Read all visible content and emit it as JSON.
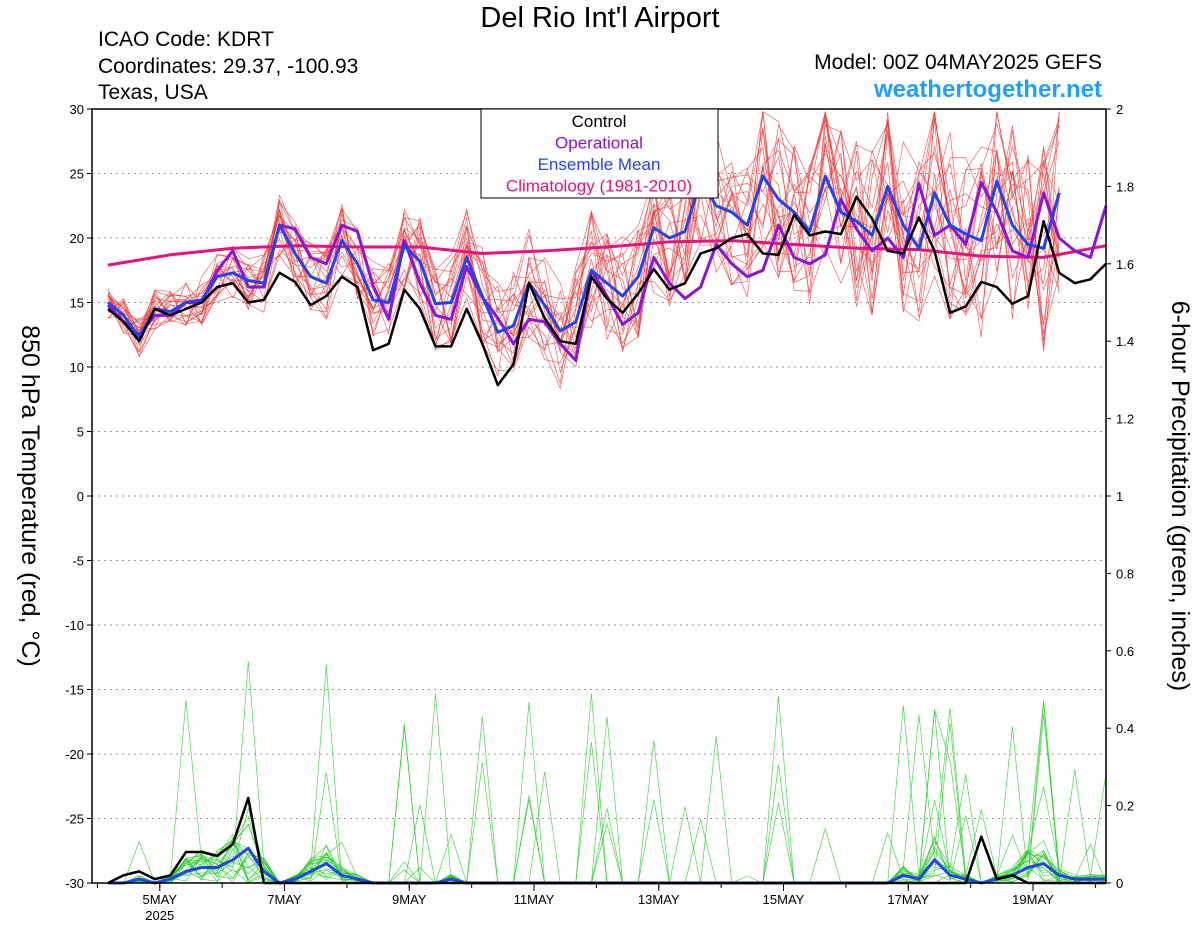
{
  "header": {
    "title": "Del Rio Int'l Airport",
    "icao": "ICAO Code: KDRT",
    "coords": "Coordinates: 29.37, -100.93",
    "region": "Texas, USA",
    "model": "Model: 00Z 04MAY2025 GEFS",
    "site": "weathertogether.net"
  },
  "colors": {
    "control": "#000000",
    "operational": "#8a14d8",
    "mean": "#2244ee",
    "climatology": "#e8127c",
    "members_temp": "#ee3030",
    "members_precip": "#22cc22",
    "site": "#1ea0ff"
  },
  "chart_data": {
    "type": "line",
    "left_axis_label": "850 hPa Temperature (red, °C)",
    "right_axis_label": "6-hour Precipitation (green, inches)",
    "ylim_left": [
      -30,
      30
    ],
    "ylim_right": [
      0,
      2
    ],
    "left_ticks": [
      "30",
      "25",
      "20",
      "15",
      "10",
      "5",
      "0",
      "-5",
      "-10",
      "-15",
      "-20",
      "-25",
      "-30"
    ],
    "right_ticks": [
      "2",
      "1.8",
      "1.6",
      "1.4",
      "1.2",
      "1",
      "0.8",
      "0.6",
      "0.4",
      "0.2",
      "0"
    ],
    "x_ticks": [
      {
        "day": 0.83,
        "label": "5MAY",
        "sub": "2025"
      },
      {
        "day": 2.83,
        "label": "7MAY",
        "sub": ""
      },
      {
        "day": 4.83,
        "label": "9MAY",
        "sub": ""
      },
      {
        "day": 6.83,
        "label": "11MAY",
        "sub": ""
      },
      {
        "day": 8.83,
        "label": "13MAY",
        "sub": ""
      },
      {
        "day": 10.83,
        "label": "15MAY",
        "sub": ""
      },
      {
        "day": 12.83,
        "label": "17MAY",
        "sub": ""
      },
      {
        "day": 14.83,
        "label": "19MAY",
        "sub": ""
      }
    ],
    "x_range_days": [
      0,
      16
    ],
    "step_hours": 6,
    "legend": [
      "Control",
      "Operational",
      "Ensemble Mean",
      "Climatology (1981-2010)"
    ],
    "legend_position": "top-center",
    "grid": true,
    "series": [
      {
        "name": "Control",
        "axis": "left",
        "values": [
          14.5,
          13.5,
          12,
          14.5,
          14,
          14.5,
          15,
          16.2,
          16.5,
          15,
          15.2,
          17.3,
          16.6,
          14.8,
          15.5,
          17,
          16.2,
          11.3,
          11.8,
          16,
          14.5,
          11.6,
          11.6,
          14.5,
          11.8,
          8.6,
          10.2,
          16.5,
          13.8,
          12,
          11.8,
          17,
          15.3,
          14.2,
          15.7,
          17.6,
          16,
          16.5,
          18.8,
          19.2,
          20,
          20.3,
          18.8,
          18.7,
          21.8,
          20.2,
          20.5,
          20.3,
          23.2,
          21.5,
          19,
          18.8,
          21.6,
          19,
          14.2,
          14.7,
          16.6,
          16.2,
          14.9,
          15.5,
          21.3,
          17.3,
          16.5,
          16.8,
          18
        ]
      },
      {
        "name": "Operational",
        "axis": "left",
        "values": [
          14.8,
          13.5,
          12.5,
          14,
          14,
          15,
          15,
          17.5,
          19,
          16.2,
          16.2,
          21,
          20.7,
          18.5,
          18,
          21,
          20.5,
          16.3,
          13.7,
          19.8,
          16.5,
          14,
          13.7,
          17.8,
          15.4,
          13.8,
          11.8,
          13.7,
          13.5,
          11.8,
          10.5,
          17.5,
          15.5,
          13.3,
          14.2,
          18.5,
          16.5,
          15.3,
          16.2,
          19.5,
          18,
          17,
          17.5,
          21,
          18.5,
          18,
          18.7,
          23,
          20.7,
          19,
          20,
          18.5,
          24.2,
          20.2,
          21,
          19.5,
          24.3,
          22,
          19,
          18.5,
          23.5,
          20,
          19,
          18.5,
          22.5
        ]
      },
      {
        "name": "Ensemble Mean",
        "axis": "left",
        "values": [
          15,
          14,
          12.3,
          14.5,
          14.3,
          15,
          15.2,
          17,
          17.3,
          16.7,
          16.5,
          21,
          18.8,
          17,
          16.5,
          19.8,
          18,
          15.2,
          15,
          19.4,
          18.2,
          14.9,
          15,
          18.5,
          15.5,
          12.7,
          13.2,
          16.5,
          14.8,
          12.8,
          13.5,
          17.5,
          16.5,
          15.5,
          17,
          20.8,
          20,
          20.5,
          24.5,
          22.5,
          22,
          21,
          24.8,
          23,
          22,
          20.5,
          24.8,
          22,
          21.3,
          20.2,
          24,
          21,
          19.2,
          23.5,
          21,
          20.3,
          19.8,
          24.4,
          21,
          19.5,
          19.2,
          23.5
        ]
      },
      {
        "name": "Climatology (1981-2010)",
        "axis": "left",
        "values_daily": [
          17.9,
          18.7,
          19.2,
          19.4,
          19.3,
          19.3,
          18.8,
          19,
          19.3,
          19.7,
          19.8,
          19.5,
          19.2,
          19.1,
          18.6,
          18.5,
          19.4
        ]
      },
      {
        "name": "Control Precipitation",
        "axis": "right",
        "values": [
          0,
          0.02,
          0.03,
          0.01,
          0.02,
          0.08,
          0.08,
          0.07,
          0.1,
          0.22,
          0,
          0,
          0,
          0,
          0,
          0,
          0,
          0,
          0,
          0,
          0,
          0,
          0,
          0,
          0,
          0,
          0,
          0,
          0,
          0,
          0,
          0,
          0,
          0,
          0,
          0,
          0,
          0,
          0,
          0,
          0,
          0,
          0,
          0,
          0,
          0,
          0,
          0,
          0,
          0,
          0,
          0,
          0,
          0,
          0,
          0,
          0.12,
          0.01,
          0.02,
          0,
          0,
          0,
          0,
          0,
          0
        ]
      },
      {
        "name": "Mean Precipitation",
        "axis": "right",
        "values": [
          0,
          0,
          0.01,
          0,
          0.01,
          0.03,
          0.04,
          0.04,
          0.06,
          0.09,
          0.03,
          0,
          0.01,
          0.03,
          0.05,
          0.02,
          0.01,
          0,
          0,
          0,
          0,
          0,
          0.01,
          0,
          0,
          0,
          0,
          0,
          0,
          0,
          0,
          0,
          0,
          0,
          0,
          0,
          0,
          0,
          0,
          0,
          0,
          0,
          0,
          0,
          0,
          0,
          0,
          0,
          0,
          0,
          0,
          0.02,
          0.01,
          0.06,
          0.02,
          0.01,
          0,
          0.01,
          0.02,
          0.04,
          0.05,
          0.02,
          0.01,
          0.01,
          0.01
        ]
      }
    ]
  }
}
